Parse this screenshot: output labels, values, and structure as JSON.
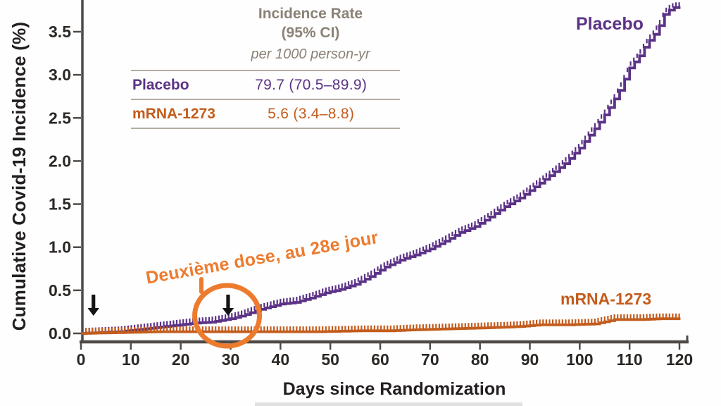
{
  "figure": {
    "y_axis_title": "Cumulative Covid-19 Incidence (%)",
    "x_axis_title": "Days since Randomization"
  },
  "legend_table": {
    "header_line1": "Incidence Rate",
    "header_line2": "(95% CI)",
    "subheader": "per 1000 person-yr",
    "rows": [
      {
        "label": "Placebo",
        "value": "79.7 (70.5–89.9)",
        "color": "#5b3286"
      },
      {
        "label": "mRNA-1273",
        "value": "5.6 (3.4–8.8)",
        "color": "#c35c1d"
      }
    ]
  },
  "annotation": {
    "text": "Deuxième dose, au 28e jour",
    "color": "#ed7b2e",
    "circle_day": 29.3,
    "arrow_days": [
      2.5,
      29.5
    ],
    "arrow_color": "#141414"
  },
  "chart_data": {
    "type": "line",
    "subtype": "kaplan-meier-step-curves-with-censor-ticks",
    "xlabel": "Days since Randomization",
    "ylabel": "Cumulative Covid-19 Incidence (%)",
    "xlim": [
      0,
      120
    ],
    "ylim": [
      0,
      3.5
    ],
    "x_ticks": [
      0,
      10,
      20,
      30,
      40,
      50,
      60,
      70,
      80,
      90,
      100,
      110,
      120
    ],
    "y_ticks": [
      "0.0",
      "0.5",
      "1.0",
      "1.5",
      "2.0",
      "2.5",
      "3.0",
      "3.5"
    ],
    "grid": false,
    "axis_color": "#4e4a46",
    "series": [
      {
        "name": "Placebo",
        "color": "#5b3286",
        "label_position": "top-right",
        "points": [
          [
            0,
            0
          ],
          [
            4,
            0.01
          ],
          [
            8,
            0.02
          ],
          [
            11,
            0.04
          ],
          [
            14,
            0.06
          ],
          [
            17,
            0.08
          ],
          [
            20,
            0.1
          ],
          [
            23,
            0.12
          ],
          [
            26,
            0.13
          ],
          [
            28,
            0.15
          ],
          [
            30,
            0.17
          ],
          [
            32,
            0.2
          ],
          [
            34,
            0.24
          ],
          [
            36,
            0.28
          ],
          [
            38,
            0.31
          ],
          [
            40,
            0.34
          ],
          [
            43,
            0.36
          ],
          [
            46,
            0.41
          ],
          [
            49,
            0.47
          ],
          [
            52,
            0.51
          ],
          [
            55,
            0.57
          ],
          [
            58,
            0.66
          ],
          [
            61,
            0.77
          ],
          [
            64,
            0.85
          ],
          [
            67,
            0.91
          ],
          [
            70,
            0.98
          ],
          [
            73,
            1.07
          ],
          [
            76,
            1.17
          ],
          [
            79,
            1.24
          ],
          [
            82,
            1.35
          ],
          [
            85,
            1.47
          ],
          [
            88,
            1.57
          ],
          [
            91,
            1.7
          ],
          [
            94,
            1.83
          ],
          [
            97,
            1.97
          ],
          [
            100,
            2.15
          ],
          [
            102,
            2.3
          ],
          [
            104,
            2.45
          ],
          [
            106,
            2.62
          ],
          [
            108,
            2.82
          ],
          [
            110,
            3.08
          ],
          [
            112,
            3.22
          ],
          [
            113,
            3.32
          ],
          [
            114,
            3.4
          ],
          [
            115,
            3.47
          ],
          [
            116,
            3.57
          ],
          [
            117,
            3.7
          ],
          [
            118,
            3.75
          ],
          [
            119,
            3.78
          ]
        ]
      },
      {
        "name": "mRNA-1273",
        "color": "#c35c1d",
        "label_position": "right",
        "points": [
          [
            0,
            0
          ],
          [
            8,
            0.01
          ],
          [
            16,
            0.02
          ],
          [
            24,
            0.02
          ],
          [
            32,
            0.02
          ],
          [
            40,
            0.02
          ],
          [
            48,
            0.02
          ],
          [
            56,
            0.03
          ],
          [
            62,
            0.03
          ],
          [
            66,
            0.04
          ],
          [
            72,
            0.05
          ],
          [
            78,
            0.06
          ],
          [
            84,
            0.07
          ],
          [
            88,
            0.08
          ],
          [
            92,
            0.1
          ],
          [
            98,
            0.1
          ],
          [
            103,
            0.11
          ],
          [
            107,
            0.16
          ],
          [
            112,
            0.16
          ],
          [
            116,
            0.17
          ],
          [
            119,
            0.17
          ]
        ]
      }
    ]
  }
}
